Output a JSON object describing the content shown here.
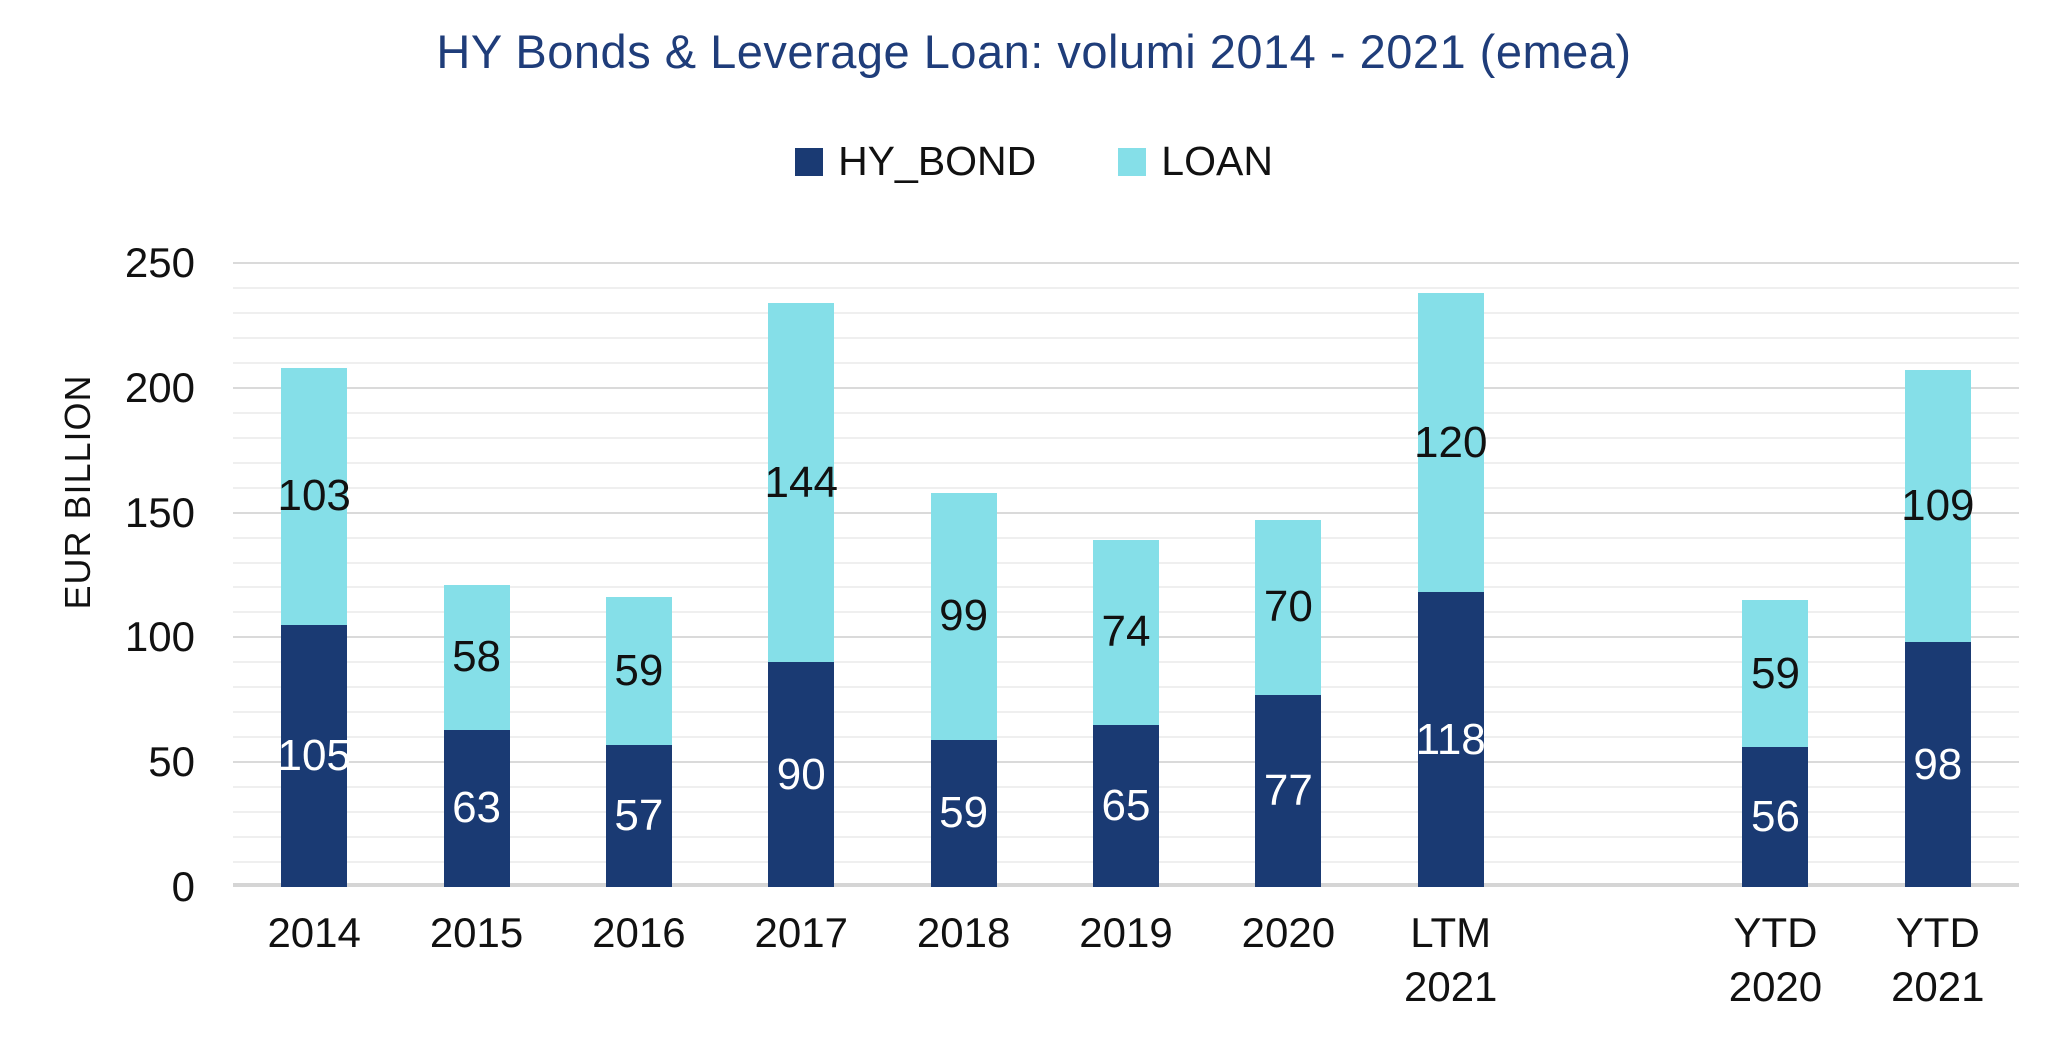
{
  "chart_data": {
    "type": "bar",
    "stacked": true,
    "title": "HY Bonds & Leverage Loan: volumi 2014 - 2021 (emea)",
    "ylabel": "EUR BILLION",
    "xlabel": "",
    "ylim": [
      0,
      250
    ],
    "yticks": [
      0,
      50,
      100,
      150,
      200,
      250
    ],
    "minor_grid_step": 10,
    "grid": true,
    "legend_position": "top-center",
    "categories": [
      "2014",
      "2015",
      "2016",
      "2017",
      "2018",
      "2019",
      "2020",
      "LTM\n2021",
      "",
      "YTD\n2020",
      "YTD\n2021"
    ],
    "series": [
      {
        "name": "HY_BOND",
        "color": "#1a3a73",
        "label_color": "#ffffff",
        "values": [
          105,
          63,
          57,
          90,
          59,
          65,
          77,
          118,
          null,
          56,
          98
        ]
      },
      {
        "name": "LOAN",
        "color": "#85dfe8",
        "label_color": "#111111",
        "values": [
          103,
          58,
          59,
          144,
          99,
          74,
          70,
          120,
          null,
          59,
          109
        ]
      }
    ]
  },
  "colors": {
    "title": "#1f3d7a",
    "background": "#ffffff",
    "grid_minor": "#efefef",
    "grid_major": "#dadada",
    "axis_line": "#d5d5d5",
    "text": "#111111"
  }
}
